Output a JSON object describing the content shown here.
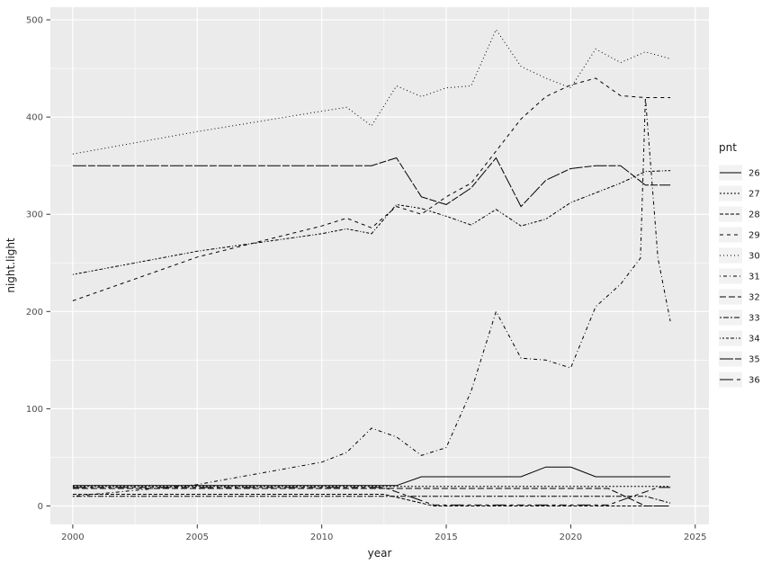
{
  "figure": {
    "background": "#FFFFFF",
    "panel_background": "#EBEBEB",
    "grid_color": "#FFFFFF",
    "series_color": "#000000",
    "tick_color": "#333333",
    "tick_label_color": "#4D4D4D",
    "legend_key_background": "#F2F2F2"
  },
  "chart_data": {
    "type": "line",
    "title": "",
    "xlabel": "year",
    "ylabel": "night.light",
    "legend_title": "pnt",
    "legend_position": "right",
    "grid": true,
    "xlim": [
      1999.1,
      2025.55
    ],
    "ylim": [
      -19,
      513
    ],
    "x_ticks": [
      2000,
      2005,
      2010,
      2015,
      2020,
      2025
    ],
    "y_ticks": [
      0,
      100,
      200,
      300,
      400,
      500
    ],
    "x_minor_ticks": [
      2002.5,
      2007.5,
      2012.5,
      2017.5,
      2022.5
    ],
    "y_minor_ticks": [
      50,
      150,
      250,
      350,
      450
    ],
    "series": [
      {
        "name": "26",
        "linetype": "solid",
        "dash": "",
        "points": [
          [
            2000,
            21
          ],
          [
            2013,
            21
          ],
          [
            2014,
            30
          ],
          [
            2018,
            30
          ],
          [
            2019,
            40
          ],
          [
            2020,
            40
          ],
          [
            2021,
            30
          ],
          [
            2024,
            30
          ]
        ]
      },
      {
        "name": "27",
        "linetype": "22",
        "dash": "2,2",
        "points": [
          [
            2000,
            20
          ],
          [
            2024,
            20
          ]
        ]
      },
      {
        "name": "28",
        "linetype": "42",
        "dash": "4,2",
        "points": [
          [
            2000,
            12
          ],
          [
            2012.5,
            12
          ],
          [
            2014.5,
            0
          ],
          [
            2024,
            0
          ]
        ]
      },
      {
        "name": "29",
        "linetype": "44",
        "dash": "4,4",
        "points": [
          [
            2000,
            211
          ],
          [
            2005,
            256
          ],
          [
            2010,
            288
          ],
          [
            2011,
            296
          ],
          [
            2012,
            286
          ],
          [
            2013,
            308
          ],
          [
            2014,
            300
          ],
          [
            2015,
            318
          ],
          [
            2016,
            332
          ],
          [
            2017,
            365
          ],
          [
            2018,
            398
          ],
          [
            2019,
            421
          ],
          [
            2020,
            433
          ],
          [
            2021,
            440
          ],
          [
            2022,
            422
          ],
          [
            2023,
            420
          ],
          [
            2024,
            420
          ]
        ]
      },
      {
        "name": "30",
        "linetype": "13",
        "dash": "1,3",
        "points": [
          [
            2000,
            362
          ],
          [
            2005,
            385
          ],
          [
            2010,
            406
          ],
          [
            2011,
            410
          ],
          [
            2012,
            391
          ],
          [
            2013,
            432
          ],
          [
            2014,
            421
          ],
          [
            2015,
            430
          ],
          [
            2016,
            432
          ],
          [
            2017,
            490
          ],
          [
            2018,
            452
          ],
          [
            2019,
            440
          ],
          [
            2020,
            430
          ],
          [
            2021,
            470
          ],
          [
            2022,
            456
          ],
          [
            2023,
            467
          ],
          [
            2024,
            460
          ]
        ]
      },
      {
        "name": "31",
        "linetype": "1343",
        "dash": "1,3,4,3",
        "points": [
          [
            2000,
            10
          ],
          [
            2005,
            22
          ],
          [
            2010,
            45
          ],
          [
            2011,
            55
          ],
          [
            2012,
            80
          ],
          [
            2013,
            71
          ],
          [
            2014,
            52
          ],
          [
            2015,
            60
          ],
          [
            2016,
            118
          ],
          [
            2017,
            200
          ],
          [
            2018,
            152
          ],
          [
            2019,
            150
          ],
          [
            2020,
            142
          ],
          [
            2021,
            205
          ],
          [
            2022,
            228
          ],
          [
            2022.8,
            255
          ],
          [
            2023,
            420
          ],
          [
            2023.5,
            255
          ],
          [
            2024,
            190
          ]
        ]
      },
      {
        "name": "32",
        "linetype": "73",
        "dash": "7,3",
        "points": [
          [
            2000,
            18
          ],
          [
            2021.5,
            18
          ],
          [
            2023,
            0
          ],
          [
            2024,
            0
          ]
        ]
      },
      {
        "name": "33",
        "linetype": "2262",
        "dash": "2,2,6,2",
        "points": [
          [
            2000,
            10
          ],
          [
            2023,
            10
          ],
          [
            2024,
            3
          ]
        ]
      },
      {
        "name": "34",
        "linetype": "12223242",
        "dash": "1,2,2,2,3,2,4,2",
        "points": [
          [
            2000,
            238
          ],
          [
            2005,
            262
          ],
          [
            2010,
            280
          ],
          [
            2011,
            285
          ],
          [
            2012,
            280
          ],
          [
            2013,
            310
          ],
          [
            2014,
            306
          ],
          [
            2015,
            298
          ],
          [
            2016,
            289
          ],
          [
            2017,
            305
          ],
          [
            2018,
            288
          ],
          [
            2019,
            295
          ],
          [
            2020,
            312
          ],
          [
            2021,
            322
          ],
          [
            2022,
            332
          ],
          [
            2023,
            344
          ],
          [
            2024,
            345
          ]
        ]
      },
      {
        "name": "35",
        "linetype": "F282",
        "dash": "15,2,8,2",
        "points": [
          [
            2000,
            350
          ],
          [
            2012,
            350
          ],
          [
            2013,
            358
          ],
          [
            2014,
            318
          ],
          [
            2015,
            310
          ],
          [
            2016,
            327
          ],
          [
            2017,
            358
          ],
          [
            2018,
            308
          ],
          [
            2019,
            335
          ],
          [
            2020,
            347
          ],
          [
            2021,
            350
          ],
          [
            2022,
            350
          ],
          [
            2023,
            330
          ],
          [
            2024,
            330
          ]
        ]
      },
      {
        "name": "36",
        "linetype": "F4448444",
        "dash": "15,4,4,4,8,4,4,4",
        "points": [
          [
            2000,
            19
          ],
          [
            2012.5,
            19
          ],
          [
            2014.5,
            1
          ],
          [
            2021.5,
            1
          ],
          [
            2023.5,
            19
          ],
          [
            2024,
            19
          ]
        ]
      }
    ]
  }
}
